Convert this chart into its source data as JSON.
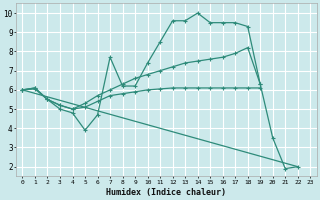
{
  "xlabel": "Humidex (Indice chaleur)",
  "bg_color": "#cce9eb",
  "grid_color": "#ffffff",
  "line_color": "#2e8b7a",
  "xlim": [
    -0.5,
    23.5
  ],
  "ylim": [
    1.5,
    10.5
  ],
  "yticks": [
    2,
    3,
    4,
    5,
    6,
    7,
    8,
    9,
    10
  ],
  "xticks": [
    0,
    1,
    2,
    3,
    4,
    5,
    6,
    7,
    8,
    9,
    10,
    11,
    12,
    13,
    14,
    15,
    16,
    17,
    18,
    19,
    20,
    21,
    22,
    23
  ],
  "lines": [
    {
      "x": [
        0,
        1,
        2,
        3,
        4,
        5,
        6,
        7,
        8,
        9,
        10,
        11,
        12,
        13,
        14,
        15,
        16,
        17,
        18,
        19,
        20,
        21,
        22
      ],
      "y": [
        6.0,
        6.1,
        5.5,
        5.0,
        4.8,
        3.9,
        4.7,
        7.7,
        6.2,
        6.2,
        7.4,
        8.5,
        9.6,
        9.6,
        10.0,
        9.5,
        9.5,
        9.5,
        9.3,
        6.3,
        3.5,
        1.9,
        2.0
      ],
      "markers": true
    },
    {
      "x": [
        0,
        1,
        2,
        3,
        4,
        5,
        6,
        7,
        8,
        9,
        10,
        11,
        12,
        13,
        14,
        15,
        16,
        17,
        18,
        19
      ],
      "y": [
        6.0,
        6.1,
        5.5,
        5.2,
        5.0,
        5.3,
        5.7,
        6.0,
        6.3,
        6.6,
        6.8,
        7.0,
        7.2,
        7.4,
        7.5,
        7.6,
        7.7,
        7.9,
        8.2,
        6.3
      ],
      "markers": true
    },
    {
      "x": [
        0,
        1,
        2,
        3,
        4,
        5,
        6,
        7,
        8,
        9,
        10,
        11,
        12,
        13,
        14,
        15,
        16,
        17,
        18,
        19
      ],
      "y": [
        6.0,
        6.05,
        5.5,
        5.2,
        5.0,
        5.1,
        5.4,
        5.7,
        5.8,
        5.9,
        6.0,
        6.05,
        6.1,
        6.1,
        6.1,
        6.1,
        6.1,
        6.1,
        6.1,
        6.1
      ],
      "markers": true
    },
    {
      "x": [
        0,
        22
      ],
      "y": [
        6.0,
        2.0
      ],
      "markers": false
    }
  ]
}
